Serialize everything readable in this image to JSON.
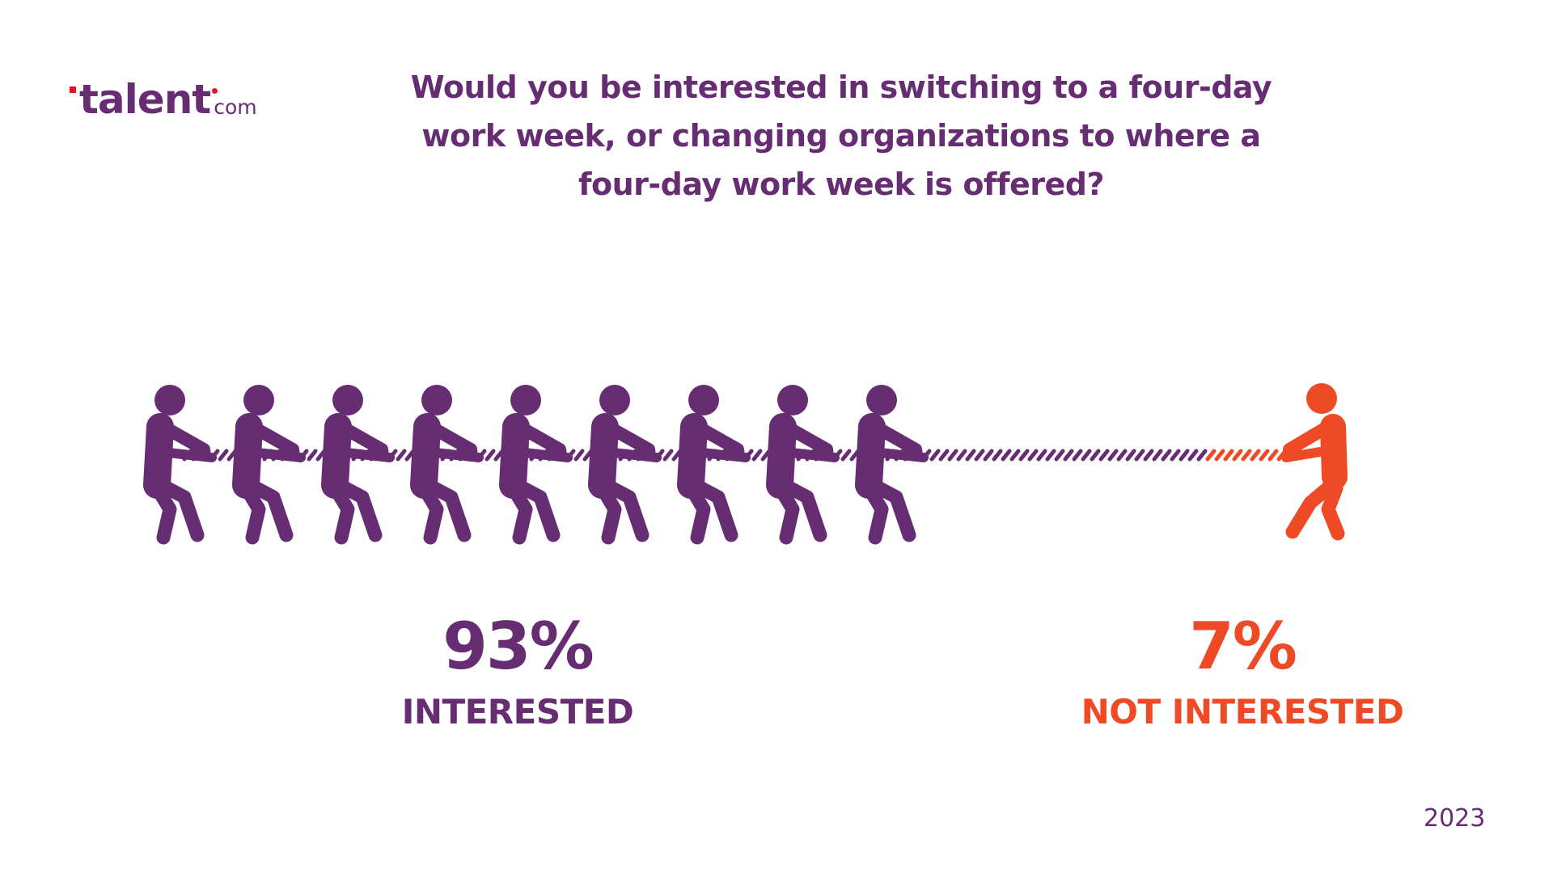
{
  "logo": {
    "name": "talent",
    "suffix": "com"
  },
  "title": "Would you be interested in switching to a four-day work week, or changing organizations to where a four-day work week is offered?",
  "year": "2023",
  "colors": {
    "purple": "#662d72",
    "orange": "#ef4a26",
    "logo_red": "#e3141e",
    "background": "#ffffff"
  },
  "chart_data": {
    "type": "pictogram",
    "title": "Would you be interested in switching to a four-day work week, or changing organizations to where a four-day work week is offered?",
    "series": [
      {
        "name": "INTERESTED",
        "value": 93,
        "value_label": "93%",
        "color": "#662d72",
        "figures": 9
      },
      {
        "name": "NOT INTERESTED",
        "value": 7,
        "value_label": "7%",
        "color": "#ef4a26",
        "figures": 1
      }
    ],
    "year": "2023"
  }
}
